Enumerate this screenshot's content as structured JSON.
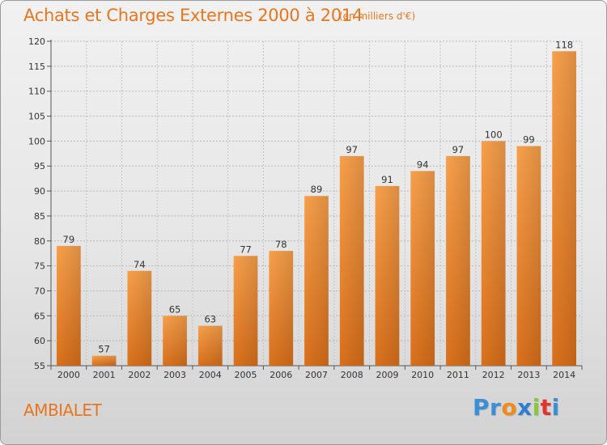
{
  "header": {
    "title": "Achats et Charges Externes 2000 à 2014",
    "subtitle": "(en milliers d'€)"
  },
  "footer": {
    "commune": "AMBIALET",
    "logo": [
      {
        "char": "P",
        "color": "#3a8fd6"
      },
      {
        "char": "r",
        "color": "#3a8fd6"
      },
      {
        "char": "o",
        "color": "#f08a1c"
      },
      {
        "char": "x",
        "color": "#2f7fd0"
      },
      {
        "char": "i",
        "color": "#8cc63f"
      },
      {
        "char": "t",
        "color": "#e2342d"
      },
      {
        "char": "i",
        "color": "#3a8fd6"
      }
    ]
  },
  "chart_data": {
    "type": "bar",
    "categories": [
      "2000",
      "2001",
      "2002",
      "2003",
      "2004",
      "2005",
      "2006",
      "2007",
      "2008",
      "2009",
      "2010",
      "2011",
      "2012",
      "2013",
      "2014"
    ],
    "values": [
      79,
      57,
      74,
      65,
      63,
      77,
      78,
      89,
      97,
      91,
      94,
      97,
      100,
      99,
      118
    ],
    "title": "Achats et Charges Externes 2000 à 2014",
    "subtitle": "(en milliers d'€)",
    "xlabel": "",
    "ylabel": "",
    "ylim": [
      55,
      120
    ],
    "yticks": [
      55,
      60,
      65,
      70,
      75,
      80,
      85,
      90,
      95,
      100,
      105,
      110,
      115,
      120
    ],
    "grid": true,
    "bar_color": "#f0892a",
    "data_labels": true
  }
}
